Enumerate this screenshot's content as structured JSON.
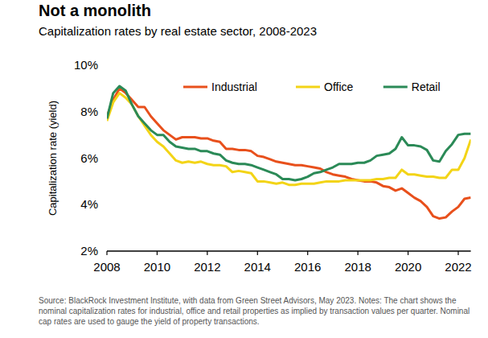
{
  "chart_data": {
    "type": "line",
    "title": "Not a monolith",
    "subtitle": "Capitalization rates by real estate sector, 2008-2023",
    "ylabel": "Capitalization rate (yield)",
    "note": "Source: BlackRock Investment Institute, with data from Green Street Advisors, May 2023. Notes: The chart shows the nominal capitalization rates for industrial, office and retail properties as implied by transaction values per quarter. Nominal cap rates are used to gauge the yield of property transactions.",
    "x": [
      2008,
      2008.25,
      2008.5,
      2008.75,
      2009,
      2009.25,
      2009.5,
      2009.75,
      2010,
      2010.25,
      2010.5,
      2010.75,
      2011,
      2011.25,
      2011.5,
      2011.75,
      2012,
      2012.25,
      2012.5,
      2012.75,
      2013,
      2013.25,
      2013.5,
      2013.75,
      2014,
      2014.25,
      2014.5,
      2014.75,
      2015,
      2015.25,
      2015.5,
      2015.75,
      2016,
      2016.25,
      2016.5,
      2016.75,
      2017,
      2017.25,
      2017.5,
      2017.75,
      2018,
      2018.25,
      2018.5,
      2018.75,
      2019,
      2019.25,
      2019.5,
      2019.75,
      2020,
      2020.25,
      2020.5,
      2020.75,
      2021,
      2021.25,
      2021.5,
      2021.75,
      2022,
      2022.25,
      2022.5
    ],
    "series": [
      {
        "name": "Industrial",
        "color": "#e8501c",
        "values": [
          7.8,
          8.5,
          9.0,
          8.8,
          8.5,
          8.2,
          8.2,
          7.8,
          7.5,
          7.2,
          7.0,
          6.8,
          6.9,
          6.9,
          6.9,
          6.85,
          6.85,
          6.75,
          6.7,
          6.4,
          6.4,
          6.35,
          6.35,
          6.3,
          6.1,
          6.05,
          5.95,
          5.85,
          5.8,
          5.75,
          5.7,
          5.7,
          5.65,
          5.6,
          5.55,
          5.4,
          5.3,
          5.25,
          5.2,
          5.1,
          5.05,
          5.0,
          5.0,
          4.95,
          4.8,
          4.75,
          4.6,
          4.7,
          4.5,
          4.3,
          4.15,
          3.9,
          3.5,
          3.4,
          3.45,
          3.7,
          3.9,
          4.25,
          4.3
        ]
      },
      {
        "name": "Office",
        "color": "#f3d417",
        "values": [
          7.6,
          8.4,
          8.8,
          8.6,
          8.3,
          7.8,
          7.4,
          7.0,
          6.7,
          6.5,
          6.2,
          5.9,
          5.8,
          5.85,
          5.8,
          5.85,
          5.75,
          5.7,
          5.7,
          5.65,
          5.4,
          5.45,
          5.4,
          5.35,
          5.0,
          5.0,
          4.95,
          4.9,
          4.95,
          4.85,
          4.85,
          4.9,
          4.9,
          4.9,
          4.95,
          5.0,
          5.0,
          5.0,
          5.05,
          5.05,
          5.05,
          5.05,
          5.05,
          5.1,
          5.1,
          5.15,
          5.15,
          5.5,
          5.3,
          5.3,
          5.25,
          5.2,
          5.2,
          5.15,
          5.15,
          5.5,
          5.5,
          6.0,
          6.8
        ]
      },
      {
        "name": "Retail",
        "color": "#2b8a57",
        "values": [
          7.7,
          8.8,
          9.1,
          8.9,
          8.3,
          7.8,
          7.5,
          7.2,
          7.0,
          7.0,
          6.7,
          6.5,
          6.45,
          6.4,
          6.4,
          6.3,
          6.3,
          6.2,
          6.15,
          5.9,
          5.8,
          5.75,
          5.75,
          5.7,
          5.6,
          5.5,
          5.4,
          5.3,
          5.1,
          5.1,
          5.05,
          5.1,
          5.2,
          5.35,
          5.4,
          5.5,
          5.6,
          5.75,
          5.75,
          5.75,
          5.8,
          5.8,
          5.9,
          6.1,
          6.15,
          6.2,
          6.4,
          6.9,
          6.55,
          6.55,
          6.5,
          6.35,
          5.9,
          5.85,
          6.3,
          6.6,
          7.0,
          7.05,
          7.05
        ]
      }
    ],
    "xlim": [
      2008,
      2022.5
    ],
    "xticks": [
      2008,
      2010,
      2012,
      2014,
      2016,
      2018,
      2020,
      2022
    ],
    "ylim": [
      2,
      10
    ],
    "yticks": [
      {
        "value": 2,
        "label": "2%"
      },
      {
        "value": 4,
        "label": "4%"
      },
      {
        "value": 6,
        "label": "6%"
      },
      {
        "value": 8,
        "label": "8%"
      },
      {
        "value": 10,
        "label": "10%"
      }
    ],
    "grid": false,
    "legend": "top"
  }
}
